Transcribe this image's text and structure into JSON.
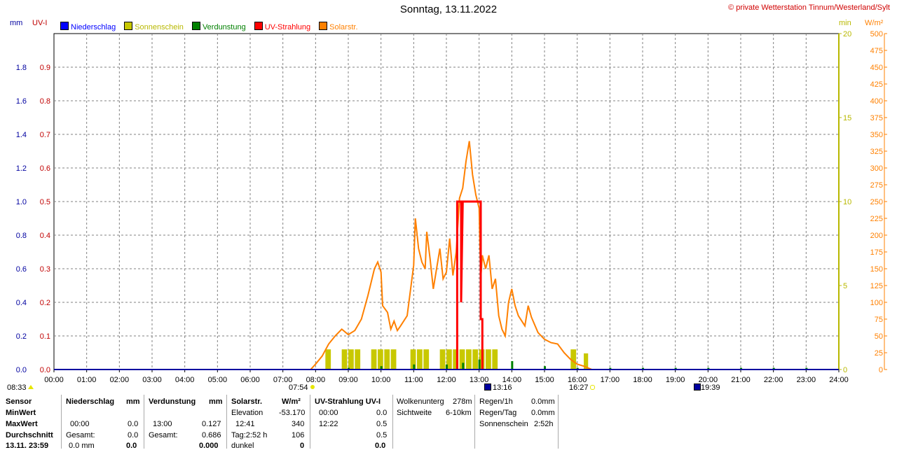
{
  "header": {
    "title": "Sonntag, 13.11.2022",
    "credit": "© private Wetterstation Tinnum/Westerland/Sylt",
    "unit_mm": "mm",
    "unit_uv": "UV-I",
    "unit_min": "min",
    "unit_wm2": "W/m²"
  },
  "legend": [
    {
      "label": "Niederschlag",
      "color": "#0000ff"
    },
    {
      "label": "Sonnenschein",
      "color": "#c8c800"
    },
    {
      "label": "Verdunstung",
      "color": "#008000"
    },
    {
      "label": "UV-Strahlung",
      "color": "#ff0000"
    },
    {
      "label": "Solarstr.",
      "color": "#ff8000"
    }
  ],
  "colors": {
    "mm": "#0000a0",
    "uv": "#c00000",
    "min": "#b8b800",
    "solar": "#ff8000",
    "grid": "#808080"
  },
  "chart_data": {
    "type": "line",
    "x_ticks": [
      "00:00",
      "01:00",
      "02:00",
      "03:00",
      "04:00",
      "05:00",
      "06:00",
      "07:00",
      "08:00",
      "09:00",
      "10:00",
      "11:00",
      "12:00",
      "13:00",
      "14:00",
      "15:00",
      "16:00",
      "17:00",
      "18:00",
      "19:00",
      "20:00",
      "21:00",
      "22:00",
      "23:00",
      "24:00"
    ],
    "xlim": [
      0,
      24
    ],
    "y_mm": {
      "ticks": [
        "0.0",
        "0.2",
        "0.4",
        "0.6",
        "0.8",
        "1.0",
        "1.2",
        "1.4",
        "1.6",
        "1.8"
      ],
      "ylim": [
        0,
        2.0
      ]
    },
    "y_uv": {
      "ticks": [
        "0.0",
        "0.1",
        "0.2",
        "0.3",
        "0.4",
        "0.5",
        "0.6",
        "0.7",
        "0.8",
        "0.9"
      ],
      "ylim": [
        0,
        1.0
      ]
    },
    "y_min": {
      "ticks": [
        "0",
        "5",
        "10",
        "15",
        "20"
      ],
      "ylim": [
        0,
        20
      ]
    },
    "y_wm2": {
      "ticks": [
        "0",
        "25",
        "50",
        "75",
        "100",
        "125",
        "150",
        "175",
        "200",
        "225",
        "250",
        "275",
        "300",
        "325",
        "350",
        "375",
        "400",
        "425",
        "450",
        "475",
        "500"
      ],
      "ylim": [
        0,
        500
      ]
    },
    "series": [
      {
        "name": "Solarstr.",
        "axis": "wm2",
        "points": [
          [
            7.85,
            0
          ],
          [
            8.0,
            8
          ],
          [
            8.2,
            20
          ],
          [
            8.4,
            38
          ],
          [
            8.6,
            50
          ],
          [
            8.8,
            60
          ],
          [
            9.0,
            52
          ],
          [
            9.2,
            58
          ],
          [
            9.4,
            75
          ],
          [
            9.6,
            110
          ],
          [
            9.8,
            150
          ],
          [
            9.9,
            160
          ],
          [
            10.0,
            145
          ],
          [
            10.05,
            95
          ],
          [
            10.2,
            85
          ],
          [
            10.3,
            60
          ],
          [
            10.4,
            72
          ],
          [
            10.5,
            58
          ],
          [
            10.6,
            65
          ],
          [
            10.8,
            80
          ],
          [
            11.0,
            155
          ],
          [
            11.05,
            225
          ],
          [
            11.15,
            180
          ],
          [
            11.25,
            160
          ],
          [
            11.35,
            150
          ],
          [
            11.4,
            205
          ],
          [
            11.5,
            165
          ],
          [
            11.6,
            120
          ],
          [
            11.7,
            150
          ],
          [
            11.8,
            180
          ],
          [
            11.9,
            135
          ],
          [
            12.0,
            145
          ],
          [
            12.1,
            195
          ],
          [
            12.2,
            140
          ],
          [
            12.3,
            175
          ],
          [
            12.4,
            255
          ],
          [
            12.5,
            270
          ],
          [
            12.6,
            310
          ],
          [
            12.7,
            340
          ],
          [
            12.8,
            290
          ],
          [
            12.9,
            260
          ],
          [
            13.0,
            240
          ],
          [
            13.05,
            135
          ],
          [
            13.1,
            170
          ],
          [
            13.2,
            150
          ],
          [
            13.3,
            170
          ],
          [
            13.4,
            120
          ],
          [
            13.5,
            135
          ],
          [
            13.6,
            80
          ],
          [
            13.7,
            60
          ],
          [
            13.8,
            50
          ],
          [
            13.9,
            100
          ],
          [
            14.0,
            120
          ],
          [
            14.1,
            95
          ],
          [
            14.2,
            80
          ],
          [
            14.4,
            65
          ],
          [
            14.5,
            95
          ],
          [
            14.6,
            78
          ],
          [
            14.8,
            55
          ],
          [
            15.0,
            45
          ],
          [
            15.2,
            40
          ],
          [
            15.4,
            38
          ],
          [
            15.6,
            25
          ],
          [
            15.8,
            15
          ],
          [
            16.0,
            8
          ],
          [
            16.2,
            5
          ],
          [
            16.45,
            0
          ]
        ]
      },
      {
        "name": "UV-Strahlung",
        "axis": "uv",
        "points": [
          [
            12.33,
            0
          ],
          [
            12.33,
            0.5
          ],
          [
            12.45,
            0.5
          ],
          [
            12.45,
            0.2
          ],
          [
            12.5,
            0.5
          ],
          [
            13.05,
            0.5
          ],
          [
            13.05,
            0.15
          ],
          [
            13.1,
            0.15
          ],
          [
            13.1,
            0
          ]
        ]
      },
      {
        "name": "Sonnenschein",
        "axis": "min",
        "bars": [
          [
            8.3,
            1.0
          ],
          [
            8.8,
            1.0
          ],
          [
            9.0,
            1.0
          ],
          [
            9.2,
            1.0
          ],
          [
            9.7,
            1.0
          ],
          [
            9.9,
            1.0
          ],
          [
            10.1,
            1.0
          ],
          [
            10.3,
            1.0
          ],
          [
            10.9,
            1.0
          ],
          [
            11.1,
            1.0
          ],
          [
            11.3,
            1.0
          ],
          [
            11.8,
            1.0
          ],
          [
            12.0,
            1.0
          ],
          [
            12.2,
            1.0
          ],
          [
            12.4,
            1.0
          ],
          [
            12.6,
            1.0
          ],
          [
            12.8,
            1.0
          ],
          [
            13.0,
            1.0
          ],
          [
            13.2,
            1.0
          ],
          [
            13.4,
            1.0
          ],
          [
            15.8,
            1.0
          ],
          [
            16.2,
            0.8
          ]
        ]
      },
      {
        "name": "Verdunstung",
        "axis": "mm",
        "bars": [
          [
            9.0,
            0.01
          ],
          [
            10.0,
            0.02
          ],
          [
            11.0,
            0.03
          ],
          [
            12.0,
            0.03
          ],
          [
            12.5,
            0.04
          ],
          [
            13.0,
            0.06
          ],
          [
            14.0,
            0.05
          ],
          [
            15.0,
            0.02
          ],
          [
            16.0,
            0.01
          ],
          [
            17.0,
            0.01
          ],
          [
            18.0,
            0.01
          ],
          [
            19.0,
            0.01
          ],
          [
            20.0,
            0.01
          ],
          [
            21.0,
            0.01
          ],
          [
            22.0,
            0.01
          ],
          [
            23.0,
            0.01
          ]
        ]
      }
    ]
  },
  "sun": {
    "rise_time": "07:54",
    "noon_time": "13:16",
    "set_time": "16:27",
    "moon_time": "19:39",
    "first_time": "08:33"
  },
  "stats": {
    "sensor": {
      "head": "Sensor",
      "rows": [
        "MinWert",
        "MaxWert",
        "Durchschnitt",
        "13.11. 23:59"
      ]
    },
    "niederschlag": {
      "head": "Niederschlag",
      "unit": "mm",
      "r2a": "00:00",
      "r2b": "0.0",
      "r3a": "Gesamt:",
      "r3b": "0.0",
      "r4a": "0.0 mm",
      "r4b": "0.0"
    },
    "verdunstung": {
      "head": "Verdunstung",
      "unit": "mm",
      "r2a": "13:00",
      "r2b": "0.127",
      "r3a": "Gesamt:",
      "r3b": "0.686",
      "r4b": "0.000"
    },
    "solar": {
      "head": "Solarstr.",
      "unit": "W/m²",
      "r1a": "Elevation",
      "r1b": "-53.170",
      "r2a": "12:41",
      "r2b": "340",
      "r3a": "Tag:2:52 h",
      "r3b": "106",
      "r4a": "dunkel",
      "r4b": "0"
    },
    "uv": {
      "head": "UV-Strahlung UV-I",
      "r1a": "00:00",
      "r1b": "0.0",
      "r2a": "12:22",
      "r2b": "0.5",
      "r3b": "0.5",
      "r4b": "0.0"
    },
    "wolken": {
      "l1": "Wolkenunterg",
      "v1": "278m",
      "l2": "Sichtweite",
      "v2": "6-10km"
    },
    "regen": {
      "l1": "Regen/1h",
      "v1": "0.0mm",
      "l2": "Regen/Tag",
      "v2": "0.0mm",
      "l3": "Sonnenschein",
      "v3": "2:52h"
    }
  }
}
